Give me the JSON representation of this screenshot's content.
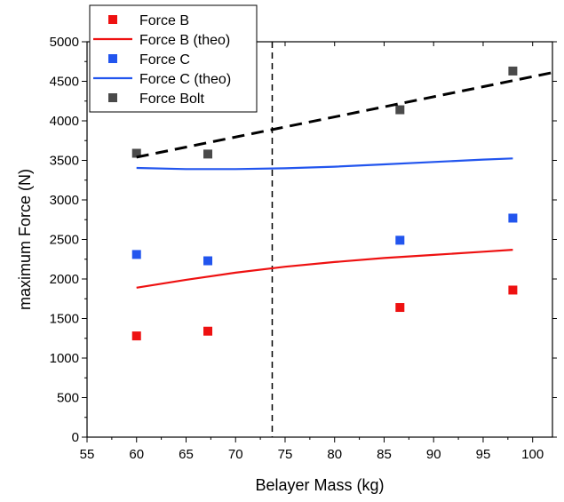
{
  "chart_data": {
    "type": "scatter",
    "xlabel": "Belayer Mass (kg)",
    "ylabel": "maximum Force (N)",
    "xlim": [
      55,
      102
    ],
    "ylim": [
      0,
      5000
    ],
    "x_ticks": [
      55,
      60,
      65,
      70,
      75,
      80,
      85,
      90,
      95,
      100
    ],
    "y_ticks": [
      0,
      500,
      1000,
      1500,
      2000,
      2500,
      3000,
      3500,
      4000,
      4500,
      5000
    ],
    "grid": false,
    "legend_position": "top-left",
    "vertical_reference_line": {
      "x": 73.7,
      "style": "dashed"
    },
    "series": [
      {
        "name": "Force B",
        "kind": "scatter",
        "color": "#ee1111",
        "marker": "square",
        "x": [
          60,
          67.2,
          86.6,
          98
        ],
        "y": [
          1280,
          1340,
          1640,
          1860
        ]
      },
      {
        "name": "Force B (theo)",
        "kind": "line",
        "color": "#ee1111",
        "style": "solid",
        "x": [
          60,
          65,
          70,
          75,
          80,
          85,
          90,
          95,
          98
        ],
        "y": [
          1890,
          1990,
          2080,
          2155,
          2215,
          2265,
          2305,
          2345,
          2370
        ]
      },
      {
        "name": "Force C",
        "kind": "scatter",
        "color": "#2255ee",
        "marker": "square",
        "x": [
          60,
          67.2,
          86.6,
          98
        ],
        "y": [
          2310,
          2230,
          2490,
          2770
        ]
      },
      {
        "name": "Force C (theo)",
        "kind": "line",
        "color": "#2255ee",
        "style": "solid",
        "x": [
          60,
          65,
          70,
          75,
          80,
          85,
          90,
          95,
          98
        ],
        "y": [
          3405,
          3390,
          3390,
          3400,
          3420,
          3450,
          3480,
          3510,
          3525
        ]
      },
      {
        "name": "Force Bolt",
        "kind": "scatter",
        "color": "#4a4a4a",
        "marker": "square",
        "x": [
          60,
          67.2,
          86.6,
          98
        ],
        "y": [
          3590,
          3580,
          4140,
          4630
        ]
      },
      {
        "name": "",
        "kind": "line",
        "color": "#000000",
        "style": "dashed",
        "legend": false,
        "x": [
          60,
          102
        ],
        "y": [
          3540,
          4610
        ]
      }
    ]
  }
}
